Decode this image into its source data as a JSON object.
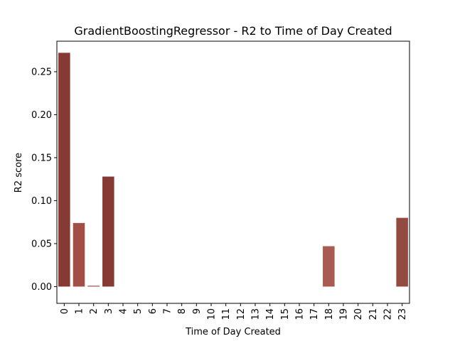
{
  "chart_data": {
    "type": "bar",
    "title": "GradientBoostingRegressor - R2 to Time of Day Created",
    "xlabel": "Time of Day Created",
    "ylabel": "R2 score",
    "categories": [
      "0",
      "1",
      "2",
      "3",
      "4",
      "5",
      "6",
      "7",
      "8",
      "9",
      "10",
      "11",
      "12",
      "13",
      "14",
      "15",
      "16",
      "17",
      "18",
      "19",
      "20",
      "21",
      "22",
      "23"
    ],
    "values": [
      0.272,
      0.074,
      0.001,
      0.128,
      0,
      0,
      0,
      0,
      0,
      0,
      0,
      0,
      0,
      0,
      0,
      0,
      0,
      0,
      0.047,
      0,
      0,
      0,
      0,
      0.08
    ],
    "bar_colors": [
      "#873A34",
      "#A24F47",
      "#A24F47",
      "#873A34",
      "#873A34",
      "#873A34",
      "#873A34",
      "#873A34",
      "#873A34",
      "#873A34",
      "#873A34",
      "#873A34",
      "#873A34",
      "#873A34",
      "#873A34",
      "#873A34",
      "#873A34",
      "#873A34",
      "#A95A51",
      "#873A34",
      "#873A34",
      "#873A34",
      "#873A34",
      "#954A41"
    ],
    "ylim": [
      -0.0195,
      0.2855
    ],
    "yticks": [
      0.0,
      0.05,
      0.1,
      0.15,
      0.2,
      0.25
    ],
    "ytick_labels": [
      "0.00",
      "0.05",
      "0.10",
      "0.15",
      "0.20",
      "0.25"
    ],
    "grid": false,
    "legend": "none"
  }
}
